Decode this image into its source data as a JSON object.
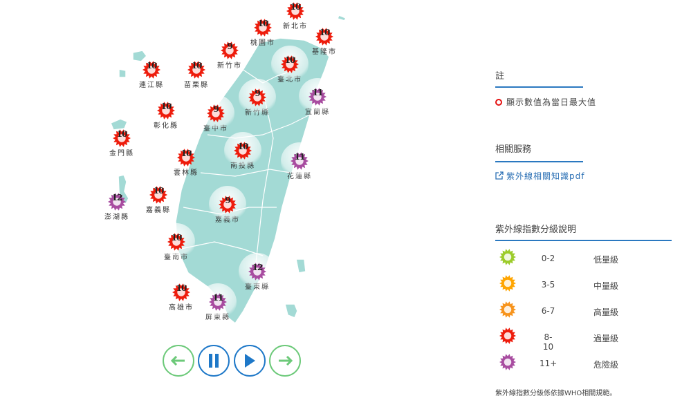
{
  "map": {
    "regions": [
      {
        "name": "新北市",
        "uv": 10
      },
      {
        "name": "桃園市",
        "uv": 10
      },
      {
        "name": "基隆市",
        "uv": 10
      },
      {
        "name": "新竹市",
        "uv": 9
      },
      {
        "name": "連江縣",
        "uv": 10
      },
      {
        "name": "苗栗縣",
        "uv": 10
      },
      {
        "name": "臺北市",
        "uv": 10
      },
      {
        "name": "新竹縣",
        "uv": 9
      },
      {
        "name": "宜蘭縣",
        "uv": 11
      },
      {
        "name": "彰化縣",
        "uv": 10
      },
      {
        "name": "臺中市",
        "uv": 9
      },
      {
        "name": "金門縣",
        "uv": 10
      },
      {
        "name": "南投縣",
        "uv": 10
      },
      {
        "name": "花蓮縣",
        "uv": 11
      },
      {
        "name": "雲林縣",
        "uv": 10
      },
      {
        "name": "澎湖縣",
        "uv": 12
      },
      {
        "name": "嘉義縣",
        "uv": 10
      },
      {
        "name": "嘉義市",
        "uv": 9
      },
      {
        "name": "臺南市",
        "uv": 10
      },
      {
        "name": "臺東縣",
        "uv": 12
      },
      {
        "name": "高雄市",
        "uv": 10
      },
      {
        "name": "屏東縣",
        "uv": 11
      }
    ],
    "land_color": "#a3dad5"
  },
  "controls": [
    {
      "icon": "arrow-left-icon"
    },
    {
      "icon": "pause-icon"
    },
    {
      "icon": "play-icon"
    },
    {
      "icon": "arrow-right-icon"
    }
  ],
  "notes": {
    "title": "註",
    "item": "顯示數值為當日最大值"
  },
  "services": {
    "title": "相關服務",
    "link": "紫外線相關知識pdf"
  },
  "legend": {
    "title": "紫外線指數分級說明",
    "levels": [
      {
        "range": "0-2",
        "label": "低量級",
        "color": "#9ccc2a"
      },
      {
        "range": "3-5",
        "label": "中量級",
        "color": "#ffa500"
      },
      {
        "range": "6-7",
        "label": "高量級",
        "color": "#f7941d"
      },
      {
        "range": "8-10",
        "label": "過量級",
        "color": "#ee1c0c"
      },
      {
        "range": "11+",
        "label": "危險級",
        "color": "#a84ca0"
      }
    ],
    "footnote": "紫外線指數分級係依據WHO相關規範。"
  }
}
